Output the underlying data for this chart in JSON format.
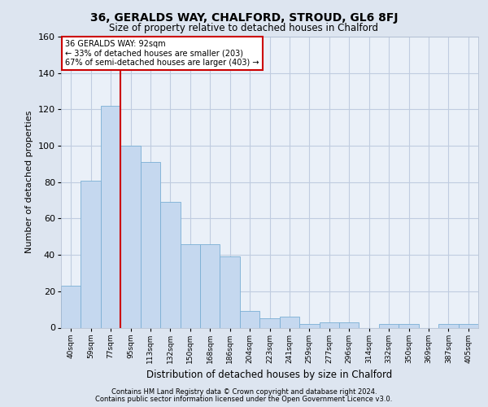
{
  "title1": "36, GERALDS WAY, CHALFORD, STROUD, GL6 8FJ",
  "title2": "Size of property relative to detached houses in Chalford",
  "xlabel": "Distribution of detached houses by size in Chalford",
  "ylabel": "Number of detached properties",
  "categories": [
    "40sqm",
    "59sqm",
    "77sqm",
    "95sqm",
    "113sqm",
    "132sqm",
    "150sqm",
    "168sqm",
    "186sqm",
    "204sqm",
    "223sqm",
    "241sqm",
    "259sqm",
    "277sqm",
    "296sqm",
    "314sqm",
    "332sqm",
    "350sqm",
    "369sqm",
    "387sqm",
    "405sqm"
  ],
  "values": [
    23,
    81,
    122,
    100,
    91,
    69,
    46,
    46,
    39,
    9,
    5,
    6,
    2,
    3,
    3,
    0,
    2,
    2,
    0,
    2,
    2
  ],
  "bar_color": "#c5d8ef",
  "bar_edge_color": "#7aafd4",
  "vline_color": "#cc0000",
  "annotation_title": "36 GERALDS WAY: 92sqm",
  "annotation_line1": "← 33% of detached houses are smaller (203)",
  "annotation_line2": "67% of semi-detached houses are larger (403) →",
  "annotation_box_color": "#ffffff",
  "annotation_box_edge_color": "#cc0000",
  "ylim": [
    0,
    160
  ],
  "yticks": [
    0,
    20,
    40,
    60,
    80,
    100,
    120,
    140,
    160
  ],
  "background_color": "#dde5f0",
  "plot_background": "#eaf0f8",
  "grid_color": "#c0cce0",
  "footer1": "Contains HM Land Registry data © Crown copyright and database right 2024.",
  "footer2": "Contains public sector information licensed under the Open Government Licence v3.0."
}
